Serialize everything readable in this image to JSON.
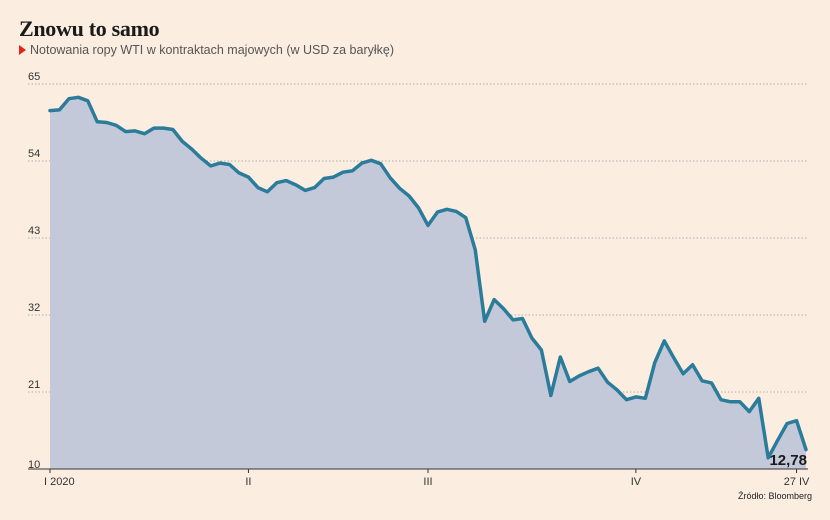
{
  "title": "Znowu to samo",
  "subtitle": "Notowania ropy WTI w kontraktach majowych (w USD za baryłkę)",
  "source": "Źródło:  Bloomberg",
  "colors": {
    "background": "#fbeee0",
    "line": "#2b7c9b",
    "area": "#c3c9d9",
    "grid": "#999999",
    "marker": "#e1251b"
  },
  "chart_data": {
    "type": "area",
    "title": "Znowu to samo",
    "subtitle": "Notowania ropy WTI w kontraktach majowych (w USD za baryłkę)",
    "ylim": [
      10,
      65
    ],
    "yticks": [
      10,
      21,
      32,
      43,
      54,
      65
    ],
    "grid": true,
    "xlabels": [
      {
        "label": "I 2020",
        "index": 0
      },
      {
        "label": "II",
        "index": 21
      },
      {
        "label": "III",
        "index": 40
      },
      {
        "label": "IV",
        "index": 62
      },
      {
        "label": "27 IV",
        "index": 79
      }
    ],
    "annotation": {
      "label": "12,78",
      "value": 12.78
    },
    "values": [
      61.2,
      61.3,
      62.9,
      63.1,
      62.6,
      59.6,
      59.5,
      59.1,
      58.2,
      58.3,
      57.9,
      58.7,
      58.7,
      58.5,
      56.8,
      55.7,
      54.4,
      53.3,
      53.7,
      53.5,
      52.3,
      51.7,
      50.2,
      49.6,
      50.9,
      51.2,
      50.6,
      49.8,
      50.2,
      51.5,
      51.7,
      52.4,
      52.6,
      53.7,
      54.1,
      53.6,
      51.6,
      50.1,
      49.0,
      47.3,
      44.8,
      46.7,
      47.1,
      46.8,
      45.9,
      41.3,
      31.1,
      34.2,
      32.9,
      31.3,
      31.5,
      28.7,
      27.0,
      20.5,
      26.0,
      22.5,
      23.3,
      23.9,
      24.4,
      22.4,
      21.3,
      19.9,
      20.3,
      20.1,
      25.2,
      28.3,
      25.9,
      23.6,
      24.9,
      22.6,
      22.3,
      19.9,
      19.6,
      19.6,
      18.2,
      20.1,
      11.6,
      14.1,
      16.5,
      16.9,
      12.78
    ]
  }
}
